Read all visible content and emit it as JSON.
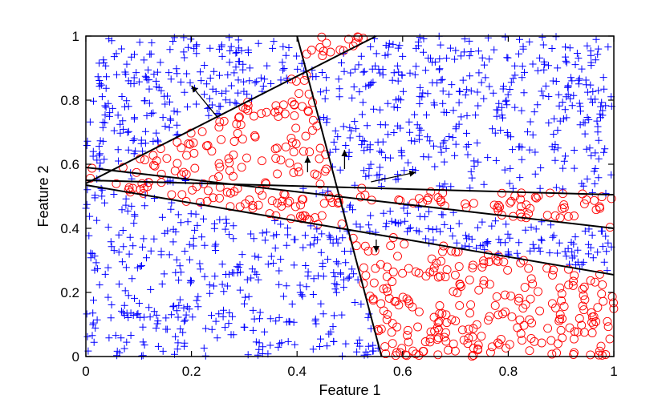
{
  "chart_data": {
    "type": "scatter",
    "title": "",
    "xlabel": "Feature 1",
    "ylabel": "Feature 2",
    "xlim": [
      0,
      1
    ],
    "ylim": [
      0,
      1
    ],
    "xticks": [
      0,
      0.2,
      0.4,
      0.6,
      0.8,
      1
    ],
    "yticks": [
      0,
      0.2,
      0.4,
      0.6,
      0.8,
      1
    ],
    "xtick_labels": [
      "0",
      "0.2",
      "0.4",
      "0.6",
      "0.8",
      "1"
    ],
    "ytick_labels": [
      "0",
      "0.2",
      "0.4",
      "0.6",
      "0.8",
      "1"
    ],
    "grid": false,
    "legend": "none",
    "series": [
      {
        "marker": "circle",
        "color": "#ff0000",
        "region_label": 1
      },
      {
        "marker": "plus",
        "color": "#0000ff",
        "region_label": 0
      }
    ],
    "num_points": 1700,
    "boundary_lines": [
      {
        "points": [
          [
            0,
            0.54
          ],
          [
            0.55,
            1.0
          ]
        ]
      },
      {
        "points": [
          [
            0.4,
            1.0
          ],
          [
            0.56,
            0.0
          ]
        ]
      },
      {
        "points": [
          [
            0,
            0.55
          ],
          [
            1,
            0.505
          ]
        ]
      },
      {
        "points": [
          [
            0,
            0.59
          ],
          [
            1,
            0.4
          ]
        ]
      },
      {
        "points": [
          [
            0,
            0.535
          ],
          [
            1,
            0.255
          ]
        ]
      }
    ],
    "normal_arrows": [
      {
        "from": [
          0.25,
          0.745
        ],
        "to": [
          0.2,
          0.845
        ]
      },
      {
        "from": [
          0.42,
          0.575
        ],
        "to": [
          0.42,
          0.625
        ]
      },
      {
        "from": [
          0.49,
          0.585
        ],
        "to": [
          0.49,
          0.645
        ]
      },
      {
        "from": [
          0.54,
          0.545
        ],
        "to": [
          0.625,
          0.575
        ]
      },
      {
        "from": [
          0.55,
          0.365
        ],
        "to": [
          0.55,
          0.325
        ]
      }
    ]
  }
}
